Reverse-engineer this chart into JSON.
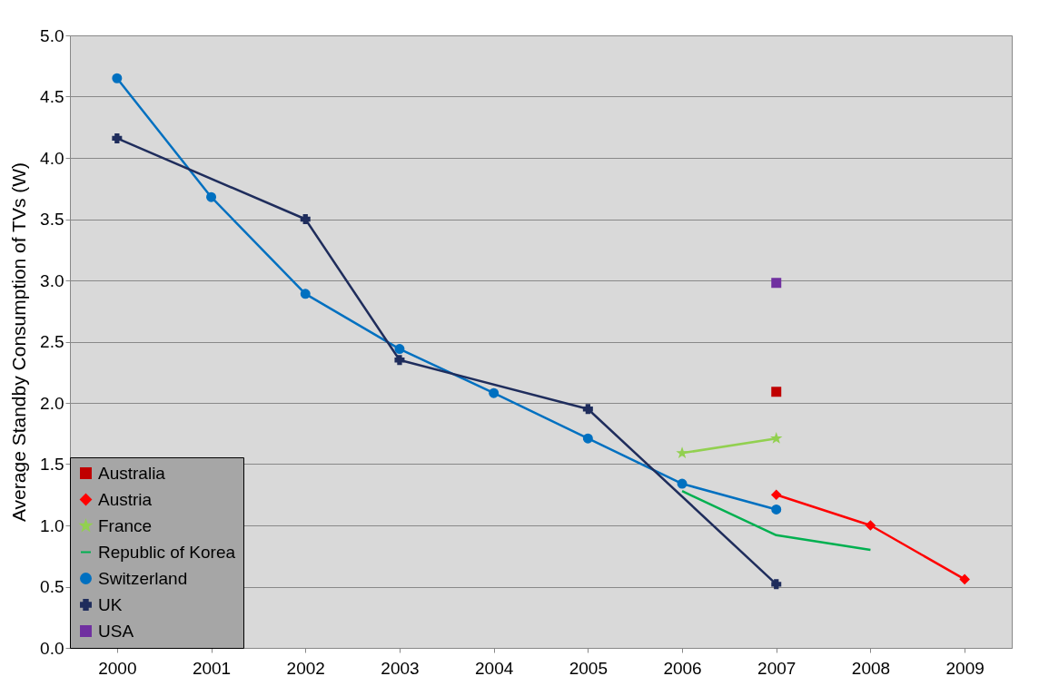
{
  "chart_data": {
    "type": "line",
    "ylabel": "Average Standby Consumption of TVs (W)",
    "categories": [
      "2000",
      "2001",
      "2002",
      "2003",
      "2004",
      "2005",
      "2006",
      "2007",
      "2008",
      "2009"
    ],
    "ylim": [
      0,
      5
    ],
    "yticks": [
      {
        "value": 0,
        "label": "0.0"
      },
      {
        "value": 0.5,
        "label": "0.5"
      },
      {
        "value": 1,
        "label": "1.0"
      },
      {
        "value": 1.5,
        "label": "1.5"
      },
      {
        "value": 2,
        "label": "2.0"
      },
      {
        "value": 2.5,
        "label": "2.5"
      },
      {
        "value": 3,
        "label": "3.0"
      },
      {
        "value": 3.5,
        "label": "3.5"
      },
      {
        "value": 4,
        "label": "4.0"
      },
      {
        "value": 4.5,
        "label": "4.5"
      },
      {
        "value": 5,
        "label": "5.0"
      }
    ],
    "grid": "y",
    "legend": "bottom left",
    "line_style": "solid",
    "series": [
      {
        "name": "Australia",
        "color": "#c00000",
        "marker": "square",
        "values": [
          null,
          null,
          null,
          null,
          null,
          null,
          null,
          2.09,
          null,
          null
        ]
      },
      {
        "name": "Austria",
        "color": "#ff0000",
        "marker": "diamond",
        "values": [
          null,
          null,
          null,
          null,
          null,
          null,
          null,
          1.25,
          1.0,
          0.56
        ]
      },
      {
        "name": "France",
        "color": "#92d050",
        "marker": "star",
        "values": [
          null,
          null,
          null,
          null,
          null,
          null,
          1.59,
          1.71,
          null,
          null
        ]
      },
      {
        "name": "Republic of Korea",
        "color": "#00b050",
        "marker": "none",
        "values": [
          null,
          null,
          null,
          null,
          null,
          null,
          1.28,
          0.92,
          0.8,
          null
        ]
      },
      {
        "name": "Switzerland",
        "color": "#0070c0",
        "marker": "circle",
        "values": [
          4.65,
          3.68,
          2.89,
          2.44,
          2.08,
          1.71,
          1.34,
          1.13,
          null,
          null
        ]
      },
      {
        "name": "UK",
        "color": "#1f2d5c",
        "marker": "cross",
        "values": [
          4.16,
          null,
          3.5,
          2.35,
          null,
          1.95,
          null,
          0.52,
          null,
          null
        ]
      },
      {
        "name": "USA",
        "color": "#7030a0",
        "marker": "square",
        "values": [
          null,
          null,
          null,
          null,
          null,
          null,
          null,
          2.98,
          null,
          null
        ]
      }
    ]
  }
}
